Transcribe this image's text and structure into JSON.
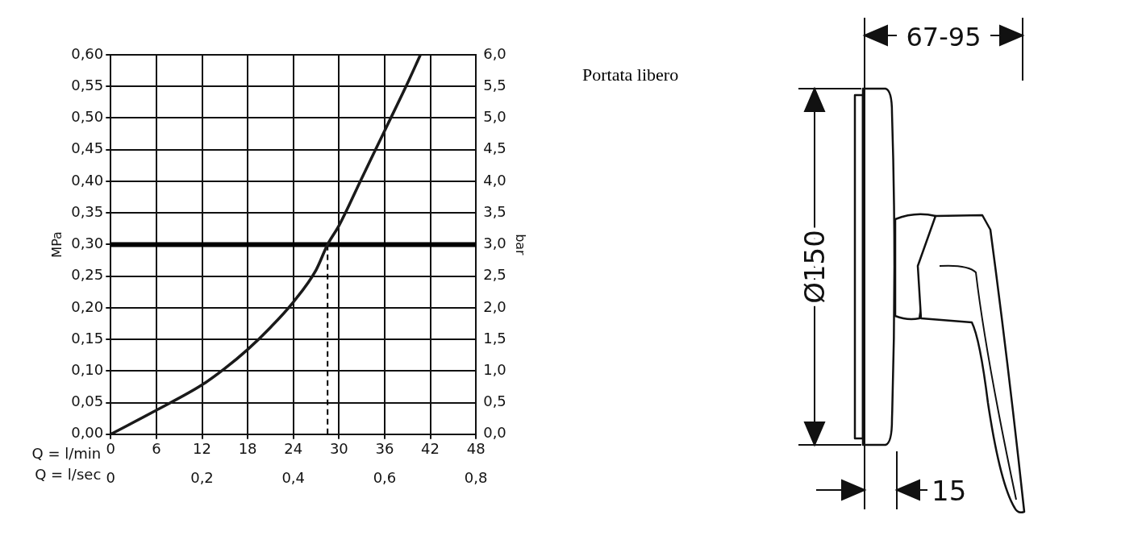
{
  "chart_data": {
    "type": "line",
    "xlabel": "Q = l/min",
    "x2label": "Q = l/sec",
    "ylabel": "MPa",
    "y2label": "bar",
    "xlim": [
      0,
      48
    ],
    "xticks": [
      0,
      6,
      12,
      18,
      24,
      30,
      36,
      42,
      48
    ],
    "x2lim": [
      0,
      0.8
    ],
    "x2ticks": [
      0,
      {
        "value": 0.2,
        "label": "0,2"
      },
      {
        "value": 0.4,
        "label": "0,4"
      },
      {
        "value": 0.6,
        "label": "0,6"
      },
      {
        "value": 0.8,
        "label": "0,8"
      }
    ],
    "ylim": [
      0,
      0.6
    ],
    "yticks": [
      {
        "value": 0,
        "label": "0,00"
      },
      {
        "value": 0.05,
        "label": "0,05"
      },
      {
        "value": 0.1,
        "label": "0,10"
      },
      {
        "value": 0.15,
        "label": "0,15"
      },
      {
        "value": 0.2,
        "label": "0,20"
      },
      {
        "value": 0.25,
        "label": "0,25"
      },
      {
        "value": 0.3,
        "label": "0,30"
      },
      {
        "value": 0.35,
        "label": "0,35"
      },
      {
        "value": 0.4,
        "label": "0,40"
      },
      {
        "value": 0.45,
        "label": "0,45"
      },
      {
        "value": 0.5,
        "label": "0,50"
      },
      {
        "value": 0.55,
        "label": "0,55"
      },
      {
        "value": 0.6,
        "label": "0,60"
      }
    ],
    "y2lim": [
      0,
      6
    ],
    "y2ticks": [
      {
        "value": 0,
        "label": "0,0"
      },
      {
        "value": 0.5,
        "label": "0,5"
      },
      {
        "value": 1,
        "label": "1,0"
      },
      {
        "value": 1.5,
        "label": "1,5"
      },
      {
        "value": 2,
        "label": "2,0"
      },
      {
        "value": 2.5,
        "label": "2,5"
      },
      {
        "value": 3,
        "label": "3,0"
      },
      {
        "value": 3.5,
        "label": "3,5"
      },
      {
        "value": 4,
        "label": "4,0"
      },
      {
        "value": 4.5,
        "label": "4,5"
      },
      {
        "value": 5,
        "label": "5,0"
      },
      {
        "value": 5.5,
        "label": "5,5"
      },
      {
        "value": 6,
        "label": "6,0"
      }
    ],
    "series": [
      {
        "color": "#1a1a1a",
        "x": [
          0,
          6,
          12,
          15,
          18,
          21,
          24,
          27,
          28.5,
          30,
          33,
          36,
          39,
          40.7
        ],
        "values": [
          0,
          0.038,
          0.078,
          0.104,
          0.134,
          0.169,
          0.209,
          0.26,
          0.3,
          0.33,
          0.405,
          0.48,
          0.555,
          0.6
        ]
      }
    ],
    "ref_lines": [
      {
        "axis": "y",
        "value": 0.3,
        "color": "#000000",
        "line_style": "solid"
      },
      {
        "axis": "x",
        "value": 28.5,
        "color": "#000000",
        "line_style": "dashed"
      }
    ],
    "grid": true,
    "legend": false,
    "annotations": [
      "Portata libero",
      "67-95",
      "Ø150",
      "15"
    ]
  }
}
